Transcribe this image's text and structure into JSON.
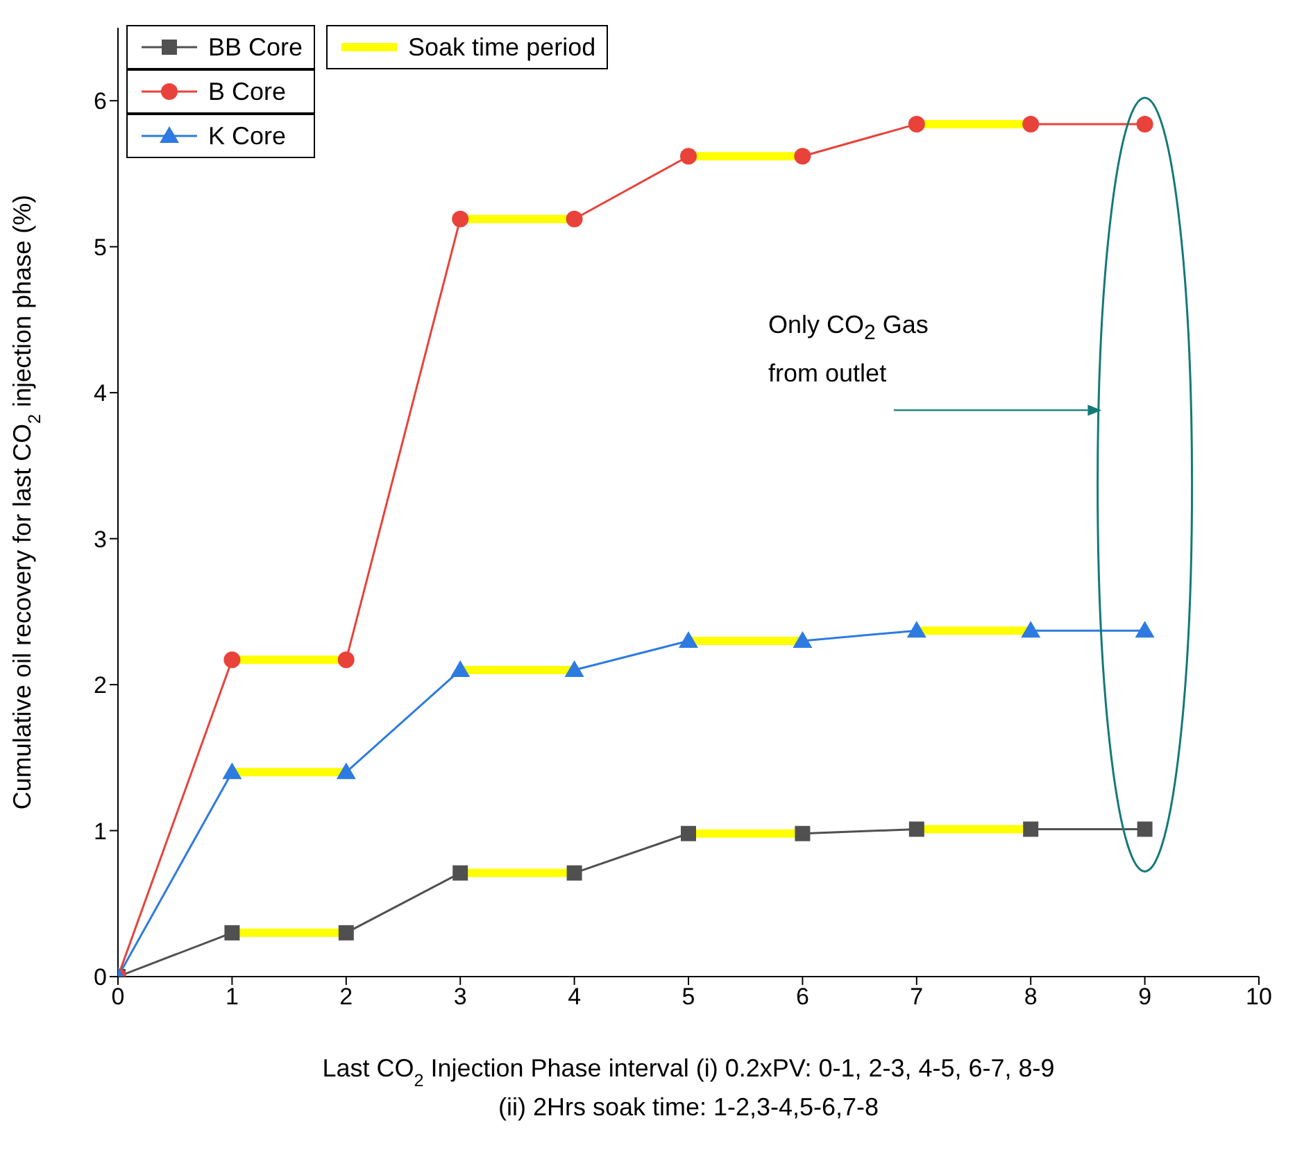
{
  "chart_data": {
    "type": "line",
    "xlabel": "Last CO$_{2}$ Injection Phase interval (i) 0.2xPV: 0-1, 2-3, 4-5, 6-7, 8-9\n(ii) 2Hrs soak time: 1-2,3-4,5-6,7-8",
    "ylabel": "Cumulative oil recovery for last CO$_{2}$ injection phase (%)",
    "annotations": [
      "Only CO$_{2}$ Gas from outlet"
    ],
    "x": [
      0,
      1,
      2,
      3,
      4,
      5,
      6,
      7,
      8,
      9
    ],
    "series": [
      {
        "name": "BB Core",
        "color": "#505050",
        "marker": "square",
        "values": [
          0,
          0.3,
          0.3,
          0.71,
          0.71,
          0.98,
          0.98,
          1.01,
          1.01,
          1.01
        ]
      },
      {
        "name": "B Core",
        "color": "#e8423a",
        "marker": "circle",
        "values": [
          0,
          2.17,
          2.17,
          5.19,
          5.19,
          5.62,
          5.62,
          5.84,
          5.84,
          5.84
        ]
      },
      {
        "name": "K Core",
        "color": "#2d7be0",
        "marker": "triangle",
        "values": [
          0,
          1.4,
          1.4,
          2.1,
          2.1,
          2.3,
          2.3,
          2.37,
          2.37,
          2.37
        ]
      },
      {
        "name": "Soak time period",
        "color": "#ffff00",
        "marker": "none",
        "x": [
          1,
          2,
          2.5,
          3,
          4,
          4.5,
          5,
          6,
          6.5,
          7,
          8
        ],
        "values": [
          0.3,
          0.3,
          null,
          0.71,
          0.71,
          null,
          0.98,
          0.98,
          null,
          1.01,
          1.01
        ]
      },
      {
        "color": "#ffff00",
        "marker": "none",
        "x": [
          1,
          2,
          2.5,
          3,
          4,
          4.5,
          5,
          6,
          6.5,
          7,
          8
        ],
        "values": [
          2.17,
          2.17,
          null,
          5.19,
          5.19,
          null,
          5.62,
          5.62,
          null,
          5.84,
          5.84
        ]
      },
      {
        "color": "#ffff00",
        "marker": "none",
        "x": [
          1,
          2,
          2.5,
          3,
          4,
          4.5,
          5,
          6,
          6.5,
          7,
          8
        ],
        "values": [
          1.4,
          1.4,
          null,
          2.1,
          2.1,
          null,
          2.3,
          2.3,
          null,
          2.37,
          2.37
        ]
      }
    ],
    "xlim": [
      0,
      10
    ],
    "xticks": [
      0,
      1,
      2,
      3,
      4,
      5,
      6,
      7,
      8,
      9,
      10
    ],
    "ylim": [
      0,
      6.5
    ],
    "yticks": [
      0,
      1,
      2,
      3,
      4,
      5,
      6
    ],
    "grid": false,
    "legend": "top left"
  }
}
